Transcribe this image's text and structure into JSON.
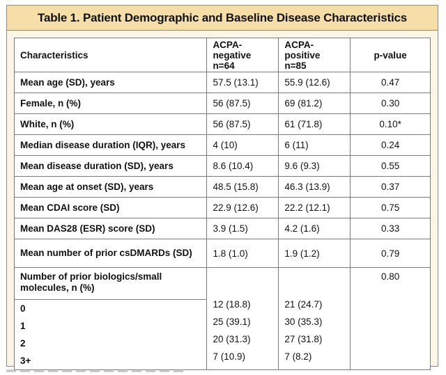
{
  "title": "Table 1. Patient Demographic and Baseline Disease Characteristics",
  "columns": {
    "characteristics": "Characteristics",
    "negative": "ACPA-negative n=64",
    "positive": "ACPA-positive n=85",
    "pvalue": "p-value"
  },
  "rows": [
    {
      "label": "Mean age (SD), years",
      "neg": "57.5 (13.1)",
      "pos": "55.9 (12.6)",
      "p": "0.47"
    },
    {
      "label": "Female, n (%)",
      "neg": "56 (87.5)",
      "pos": "69 (81.2)",
      "p": "0.30"
    },
    {
      "label": "White, n (%)",
      "neg": "56 (87.5)",
      "pos": "61 (71.8)",
      "p": "0.10*"
    },
    {
      "label": "Median disease duration (IQR), years",
      "neg": "4 (10)",
      "pos": "6 (11)",
      "p": "0.24"
    },
    {
      "label": "Mean disease duration (SD), years",
      "neg": "8.6 (10.4)",
      "pos": "9.6 (9.3)",
      "p": "0.55"
    },
    {
      "label": "Mean age at onset (SD), years",
      "neg": "48.5 (15.8)",
      "pos": "46.3 (13.9)",
      "p": "0.37"
    },
    {
      "label": "Mean CDAI score (SD)",
      "neg": "22.9 (12.6)",
      "pos": "22.2 (12.1)",
      "p": "0.75"
    },
    {
      "label": "Mean DAS28 (ESR) score (SD)",
      "neg": "3.9 (1.5)",
      "pos": "4.2 (1.6)",
      "p": "0.33"
    },
    {
      "label": "Mean number of prior csDMARDs (SD)",
      "neg": "1.8 (1.0)",
      "pos": "1.9 (1.2)",
      "p": "0.79"
    }
  ],
  "group": {
    "label": "Number of prior biologics/small molecules, n (%)",
    "p": "0.80",
    "levels": [
      {
        "label": "0",
        "neg": "12 (18.8)",
        "pos": "21 (24.7)"
      },
      {
        "label": "1",
        "neg": "25 (39.1)",
        "pos": "30 (35.3)"
      },
      {
        "label": "2",
        "neg": "20 (31.3)",
        "pos": "27 (31.8)"
      },
      {
        "label": "3+",
        "neg": "7 (10.9)",
        "pos": "7 (8.2)"
      }
    ]
  }
}
